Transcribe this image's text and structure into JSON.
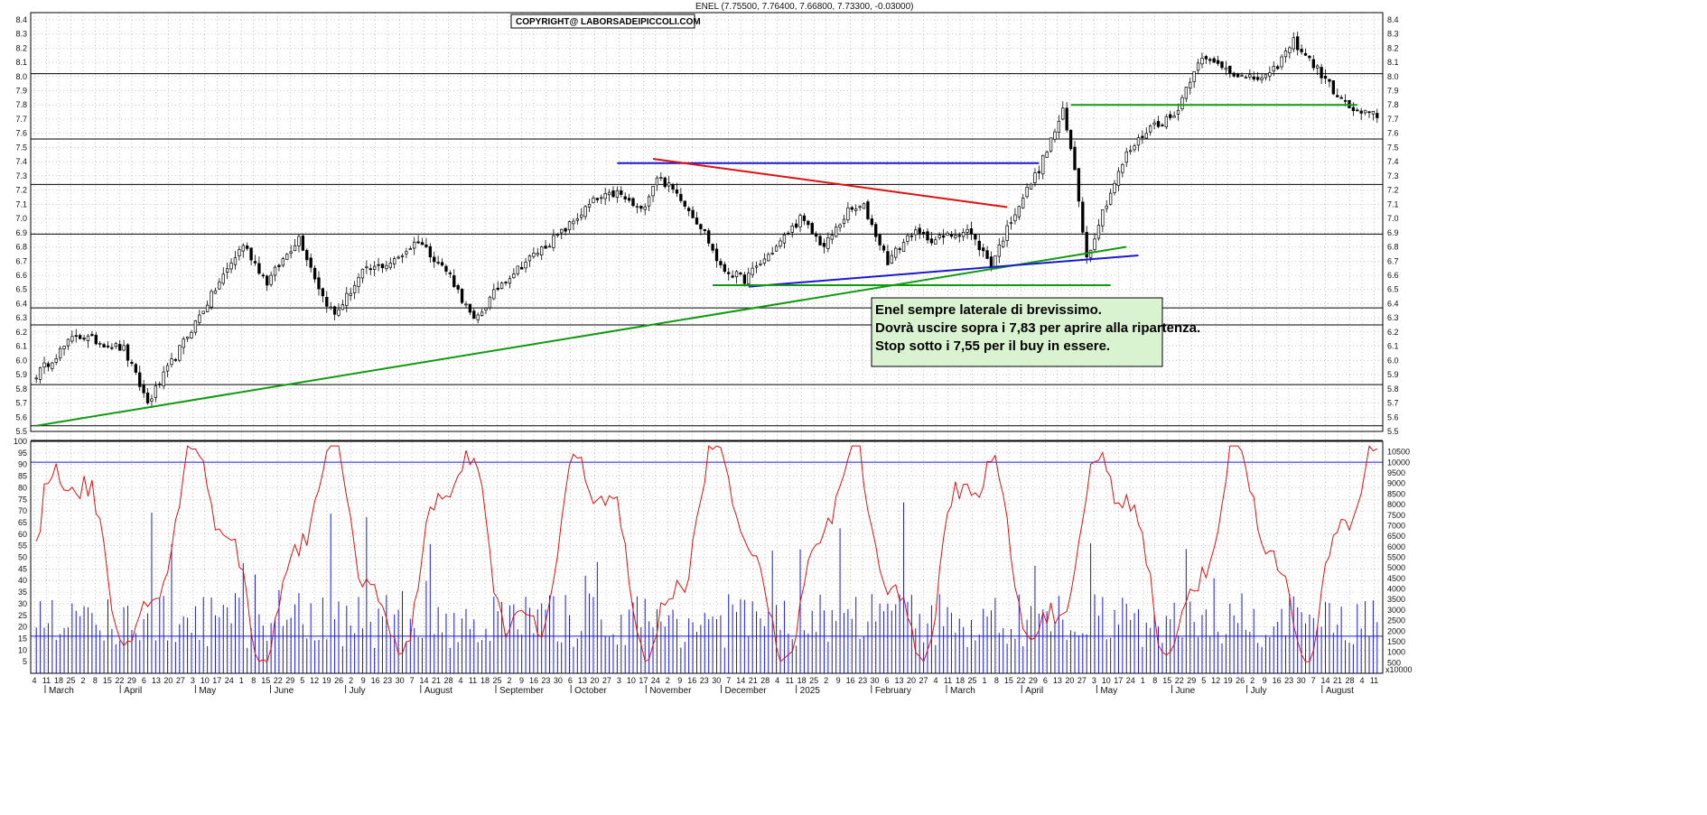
{
  "header": {
    "quote": "ENEL (7.75500, 7.76400, 7.66800, 7.73300, -0.03000)",
    "copyright": "COPYRIGHT@ LABORSADEIPICCOLI.COM"
  },
  "annotation": {
    "lines": [
      "Enel sempre laterale di brevissimo.",
      "Dovrà uscire sopra i 7,83 per aprire alla ripartenza.",
      "Stop sotto i 7,55 per il buy in essere."
    ],
    "background": "#d9f2d0"
  },
  "colors": {
    "grid": "#9a9a9a",
    "candle": "#000000",
    "support_green": "#119911",
    "trend_blue": "#1a1acc",
    "resistance_red": "#e01010",
    "oscillator": "#e01010",
    "volume": "#1a1acc"
  },
  "chart_data": [
    {
      "type": "candlestick",
      "ylim": [
        5.5,
        8.45
      ],
      "y_ticks": [
        "5.5",
        "5.6",
        "5.7",
        "5.8",
        "5.9",
        "6.0",
        "6.1",
        "6.2",
        "6.3",
        "6.4",
        "6.5",
        "6.6",
        "6.7",
        "6.8",
        "6.9",
        "7.0",
        "7.1",
        "7.2",
        "7.3",
        "7.4",
        "7.5",
        "7.6",
        "7.7",
        "7.8",
        "7.9",
        "8.0",
        "8.1",
        "8.2",
        "8.3",
        "8.4"
      ],
      "horizontal_levels": [
        5.54,
        5.83,
        6.25,
        6.37,
        6.89,
        7.24,
        7.56,
        8.02
      ],
      "anchor_closes": [
        {
          "i": 0,
          "v": 5.9
        },
        {
          "i": 10,
          "v": 6.18
        },
        {
          "i": 22,
          "v": 6.08
        },
        {
          "i": 28,
          "v": 5.7
        },
        {
          "i": 36,
          "v": 6.08
        },
        {
          "i": 46,
          "v": 6.55
        },
        {
          "i": 52,
          "v": 6.82
        },
        {
          "i": 58,
          "v": 6.55
        },
        {
          "i": 66,
          "v": 6.87
        },
        {
          "i": 72,
          "v": 6.45
        },
        {
          "i": 75,
          "v": 6.32
        },
        {
          "i": 82,
          "v": 6.62
        },
        {
          "i": 90,
          "v": 6.7
        },
        {
          "i": 96,
          "v": 6.85
        },
        {
          "i": 104,
          "v": 6.6
        },
        {
          "i": 110,
          "v": 6.27
        },
        {
          "i": 117,
          "v": 6.55
        },
        {
          "i": 124,
          "v": 6.72
        },
        {
          "i": 132,
          "v": 6.9
        },
        {
          "i": 140,
          "v": 7.12
        },
        {
          "i": 146,
          "v": 7.18
        },
        {
          "i": 152,
          "v": 7.05
        },
        {
          "i": 156,
          "v": 7.3
        },
        {
          "i": 162,
          "v": 7.15
        },
        {
          "i": 168,
          "v": 6.9
        },
        {
          "i": 172,
          "v": 6.65
        },
        {
          "i": 178,
          "v": 6.57
        },
        {
          "i": 186,
          "v": 6.8
        },
        {
          "i": 192,
          "v": 7.0
        },
        {
          "i": 198,
          "v": 6.8
        },
        {
          "i": 204,
          "v": 7.05
        },
        {
          "i": 208,
          "v": 7.08
        },
        {
          "i": 214,
          "v": 6.7
        },
        {
          "i": 220,
          "v": 6.9
        },
        {
          "i": 226,
          "v": 6.85
        },
        {
          "i": 234,
          "v": 6.92
        },
        {
          "i": 240,
          "v": 6.68
        },
        {
          "i": 246,
          "v": 7.05
        },
        {
          "i": 252,
          "v": 7.35
        },
        {
          "i": 258,
          "v": 7.75
        },
        {
          "i": 261,
          "v": 7.35
        },
        {
          "i": 264,
          "v": 6.72
        },
        {
          "i": 268,
          "v": 7.05
        },
        {
          "i": 274,
          "v": 7.45
        },
        {
          "i": 280,
          "v": 7.65
        },
        {
          "i": 286,
          "v": 7.72
        },
        {
          "i": 292,
          "v": 8.12
        },
        {
          "i": 298,
          "v": 8.08
        },
        {
          "i": 304,
          "v": 7.98
        },
        {
          "i": 310,
          "v": 8.0
        },
        {
          "i": 316,
          "v": 8.25
        },
        {
          "i": 322,
          "v": 8.05
        },
        {
          "i": 328,
          "v": 7.83
        },
        {
          "i": 332,
          "v": 7.74
        },
        {
          "i": 337,
          "v": 7.73
        }
      ],
      "trendlines": [
        {
          "color": "green",
          "from": {
            "i": 0,
            "v": 5.54
          },
          "to": {
            "i": 274,
            "v": 6.8
          }
        },
        {
          "color": "blue",
          "from": {
            "i": 179,
            "v": 6.52
          },
          "to": {
            "i": 277,
            "v": 6.74
          }
        },
        {
          "color": "blue",
          "from": {
            "i": 146,
            "v": 7.39
          },
          "to": {
            "i": 252,
            "v": 7.39
          }
        },
        {
          "color": "red",
          "from": {
            "i": 155,
            "v": 7.42
          },
          "to": {
            "i": 244,
            "v": 7.08
          }
        },
        {
          "color": "green",
          "from": {
            "i": 170,
            "v": 6.53
          },
          "to": {
            "i": 270,
            "v": 6.53
          }
        },
        {
          "color": "green",
          "from": {
            "i": 260,
            "v": 7.8
          },
          "to": {
            "i": 332,
            "v": 7.8
          }
        }
      ],
      "oscillator": {
        "ylim": [
          0,
          100
        ],
        "y_ticks": [
          "5",
          "10",
          "15",
          "20",
          "25",
          "30",
          "35",
          "40",
          "45",
          "50",
          "55",
          "60",
          "65",
          "70",
          "75",
          "80",
          "85",
          "90",
          "95",
          "100"
        ],
        "levels": [
          91,
          16
        ]
      },
      "volume": {
        "ylim": [
          0,
          11000
        ],
        "y_ticks": [
          "500",
          "1000",
          "1500",
          "2000",
          "2500",
          "3000",
          "3500",
          "4000",
          "4500",
          "5000",
          "5500",
          "6000",
          "6500",
          "7000",
          "7500",
          "8000",
          "8500",
          "9000",
          "9500",
          "10000",
          "10500"
        ],
        "unit_label": "x10000"
      },
      "x_day_ticks": [
        "4",
        "11",
        "18",
        "25",
        "2",
        "8",
        "15",
        "22",
        "29",
        "6",
        "13",
        "20",
        "27",
        "3",
        "10",
        "17",
        "24",
        "1",
        "8",
        "15",
        "22",
        "29",
        "5",
        "12",
        "19",
        "26",
        "2",
        "9",
        "16",
        "23",
        "30",
        "7",
        "14",
        "21",
        "28",
        "4",
        "11",
        "18",
        "25",
        "2",
        "9",
        "16",
        "23",
        "30",
        "6",
        "13",
        "20",
        "27",
        "3",
        "10",
        "17",
        "24",
        "2",
        "9",
        "16",
        "23",
        "30",
        "7",
        "14",
        "21",
        "28",
        "4",
        "11",
        "18",
        "25",
        "2",
        "9",
        "16",
        "23",
        "30",
        "6",
        "13",
        "20",
        "27",
        "4",
        "11",
        "18",
        "25",
        "1",
        "8",
        "15",
        "22",
        "29",
        "6",
        "13",
        "20",
        "27",
        "3",
        "10",
        "17",
        "24",
        "1",
        "8",
        "15",
        "22",
        "29",
        "5",
        "12",
        "19",
        "26",
        "2",
        "9",
        "16",
        "23",
        "30",
        "7",
        "14",
        "21",
        "28",
        "4",
        "11"
      ],
      "months": [
        "March",
        "April",
        "May",
        "June",
        "July",
        "August",
        "September",
        "October",
        "November",
        "December",
        "2025",
        "February",
        "March",
        "April",
        "May",
        "June",
        "July",
        "August"
      ]
    }
  ]
}
